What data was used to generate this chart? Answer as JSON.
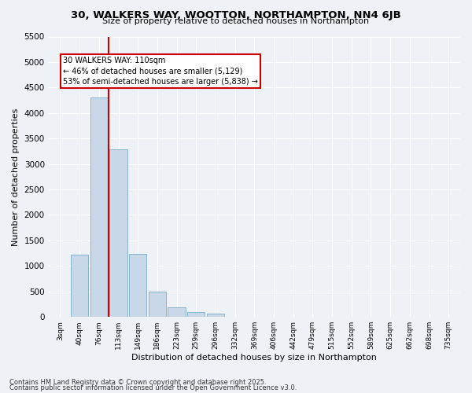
{
  "title": "30, WALKERS WAY, WOOTTON, NORTHAMPTON, NN4 6JB",
  "subtitle": "Size of property relative to detached houses in Northampton",
  "xlabel": "Distribution of detached houses by size in Northampton",
  "ylabel": "Number of detached properties",
  "categories": [
    "3sqm",
    "40sqm",
    "76sqm",
    "113sqm",
    "149sqm",
    "186sqm",
    "223sqm",
    "259sqm",
    "296sqm",
    "332sqm",
    "369sqm",
    "406sqm",
    "442sqm",
    "479sqm",
    "515sqm",
    "552sqm",
    "589sqm",
    "625sqm",
    "662sqm",
    "698sqm",
    "735sqm"
  ],
  "values": [
    0,
    1220,
    4300,
    3280,
    1240,
    490,
    190,
    90,
    60,
    0,
    0,
    0,
    0,
    0,
    0,
    0,
    0,
    0,
    0,
    0,
    0
  ],
  "bar_color": "#c8d8e8",
  "bar_edge_color": "#7aaac8",
  "vline_x": 2.5,
  "annotation_text": "30 WALKERS WAY: 110sqm\n← 46% of detached houses are smaller (5,129)\n53% of semi-detached houses are larger (5,838) →",
  "annotation_box_color": "#ffffff",
  "annotation_box_edge_color": "#cc0000",
  "vline_color": "#cc0000",
  "ylim": [
    0,
    5500
  ],
  "yticks": [
    0,
    500,
    1000,
    1500,
    2000,
    2500,
    3000,
    3500,
    4000,
    4500,
    5000,
    5500
  ],
  "footnote1": "Contains HM Land Registry data © Crown copyright and database right 2025.",
  "footnote2": "Contains public sector information licensed under the Open Government Licence v3.0.",
  "title_fontsize": 9.5,
  "subtitle_fontsize": 8,
  "bg_color": "#eef2f7",
  "grid_color": "#ffffff"
}
